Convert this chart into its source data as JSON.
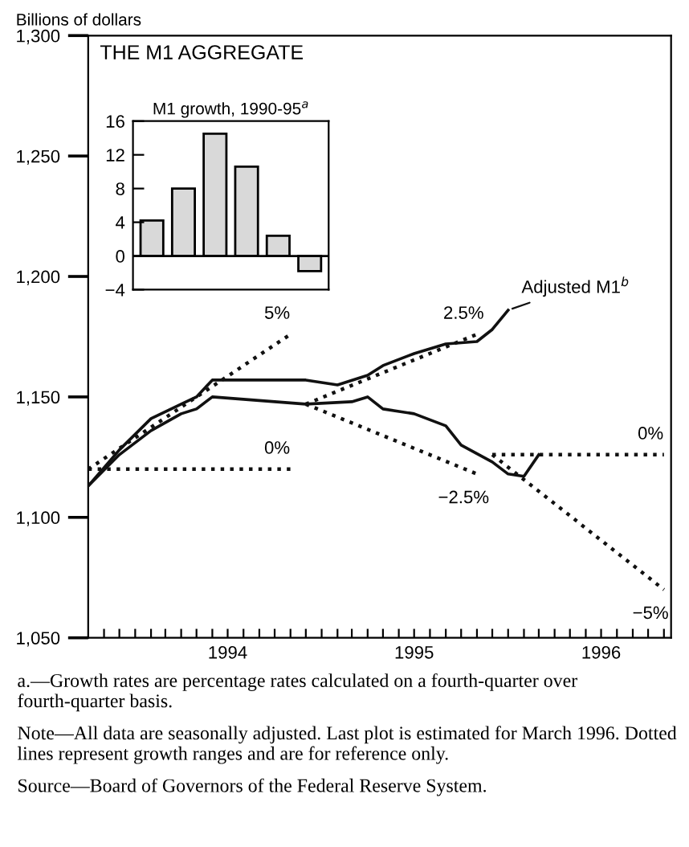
{
  "chart_data": [
    {
      "type": "line",
      "title": "THE M1 AGGREGATE",
      "ylabel": "Billions of dollars",
      "xlim": [
        "1993-10-01",
        "1996-11-15"
      ],
      "ylim": [
        1050,
        1300
      ],
      "yticks": [
        {
          "value": 1050,
          "label": "1,050"
        },
        {
          "value": 1100,
          "label": "1,100"
        },
        {
          "value": 1150,
          "label": "1,150"
        },
        {
          "value": 1200,
          "label": "1,200"
        },
        {
          "value": 1250,
          "label": "1,250"
        },
        {
          "value": 1300,
          "label": "1,300"
        }
      ],
      "xticks": [
        {
          "value": "1993-11-01",
          "label": null
        },
        {
          "value": "1993-12-01",
          "label": null
        },
        {
          "value": "1994-01-01",
          "label": null
        },
        {
          "value": "1994-02-01",
          "label": null
        },
        {
          "value": "1994-03-01",
          "label": null
        },
        {
          "value": "1994-04-01",
          "label": null
        },
        {
          "value": "1994-05-01",
          "label": null
        },
        {
          "value": "1994-06-01",
          "label": null
        },
        {
          "value": "1994-07-01",
          "label": "1994"
        },
        {
          "value": "1994-08-01",
          "label": null
        },
        {
          "value": "1994-09-01",
          "label": null
        },
        {
          "value": "1994-10-01",
          "label": null
        },
        {
          "value": "1994-11-01",
          "label": null
        },
        {
          "value": "1994-12-01",
          "label": null
        },
        {
          "value": "1995-01-01",
          "label": null
        },
        {
          "value": "1995-02-01",
          "label": null
        },
        {
          "value": "1995-03-01",
          "label": null
        },
        {
          "value": "1995-04-01",
          "label": null
        },
        {
          "value": "1995-05-01",
          "label": null
        },
        {
          "value": "1995-06-01",
          "label": null
        },
        {
          "value": "1995-07-01",
          "label": "1995"
        },
        {
          "value": "1995-08-01",
          "label": null
        },
        {
          "value": "1995-09-01",
          "label": null
        },
        {
          "value": "1995-10-01",
          "label": null
        },
        {
          "value": "1995-11-01",
          "label": null
        },
        {
          "value": "1995-12-01",
          "label": null
        },
        {
          "value": "1996-01-01",
          "label": null
        },
        {
          "value": "1996-02-01",
          "label": null
        },
        {
          "value": "1996-03-01",
          "label": null
        },
        {
          "value": "1996-04-01",
          "label": null
        },
        {
          "value": "1996-05-01",
          "label": null
        },
        {
          "value": "1996-06-01",
          "label": null
        },
        {
          "value": "1996-07-01",
          "label": "1996"
        },
        {
          "value": "1996-08-01",
          "label": null
        },
        {
          "value": "1996-09-01",
          "label": null
        },
        {
          "value": "1996-10-01",
          "label": null
        },
        {
          "value": "1996-11-01",
          "label": null
        }
      ],
      "series": [
        {
          "name": "Adjusted M1$^{b}$",
          "color": "#111111",
          "line_style": "solid",
          "x": [
            "1993-10",
            "1993-12",
            "1994-02",
            "1994-04",
            "1994-05",
            "1994-06",
            "1994-08",
            "1994-12",
            "1995-02",
            "1995-04",
            "1995-05",
            "1995-07",
            "1995-09",
            "1995-11",
            "1995-12",
            "1996-01"
          ],
          "values": [
            1113,
            1128,
            1141,
            1147,
            1150,
            1157,
            1157,
            1157,
            1155,
            1159,
            1163,
            1168,
            1172,
            1173,
            1178,
            1186
          ]
        },
        {
          "color": "#111111",
          "line_style": "solid",
          "x": [
            "1993-10",
            "1993-12",
            "1994-02",
            "1994-04",
            "1994-05",
            "1994-06",
            "1994-08",
            "1994-12",
            "1995-03",
            "1995-04",
            "1995-05",
            "1995-07",
            "1995-09",
            "1995-10",
            "1995-12",
            "1996-01",
            "1996-02",
            "1996-03"
          ],
          "values": [
            1113,
            1126,
            1136,
            1143,
            1145,
            1150,
            1149,
            1147,
            1148,
            1150,
            1145,
            1143,
            1138,
            1130,
            1123,
            1118,
            1117,
            1126
          ]
        },
        {
          "name": "5%",
          "color": "#111111",
          "line_style": "dotted",
          "x": [
            "1993-10",
            "1994-11"
          ],
          "values": [
            1120,
            1176
          ]
        },
        {
          "name": "0%",
          "color": "#111111",
          "line_style": "dotted",
          "x": [
            "1993-10",
            "1994-11"
          ],
          "values": [
            1120,
            1120
          ]
        },
        {
          "name": "2.5%",
          "color": "#111111",
          "line_style": "dotted",
          "x": [
            "1994-12",
            "1995-11"
          ],
          "values": [
            1147,
            1176
          ]
        },
        {
          "name": "−2.5%",
          "color": "#111111",
          "line_style": "dotted",
          "x": [
            "1994-12",
            "1995-11"
          ],
          "values": [
            1147,
            1118
          ]
        },
        {
          "name": "0%",
          "color": "#111111",
          "line_style": "dotted",
          "x": [
            "1995-12",
            "1996-11"
          ],
          "values": [
            1126,
            1126
          ]
        },
        {
          "name": "−5%",
          "color": "#111111",
          "line_style": "dotted",
          "x": [
            "1995-12",
            "1996-11"
          ],
          "values": [
            1126,
            1070
          ]
        }
      ],
      "annotations": [
        "a.—Growth rates are percentage rates calculated on a fourth-quarter over fourth-quarter basis.",
        "Note—All data are seasonally adjusted. Last plot is estimated for March 1996. Dotted lines represent growth ranges and are for reference only.",
        "Source—Board of Governors of the Federal Reserve System."
      ]
    },
    {
      "type": "bar",
      "title": "M1 growth, 1990-95$^{a}$",
      "categories": [
        null,
        null,
        null,
        null,
        null,
        null
      ],
      "values": [
        4.2,
        8,
        14.5,
        10.6,
        2.4,
        -1.8
      ],
      "color": "#d9d9d9",
      "ylim": [
        -4,
        16
      ],
      "yticks": [
        {
          "value": -4,
          "label": "−4"
        },
        0,
        4,
        8,
        12,
        16
      ],
      "tick_labels": "y",
      "ref_lines": [
        {
          "axis": "y",
          "value": 0
        }
      ]
    }
  ]
}
